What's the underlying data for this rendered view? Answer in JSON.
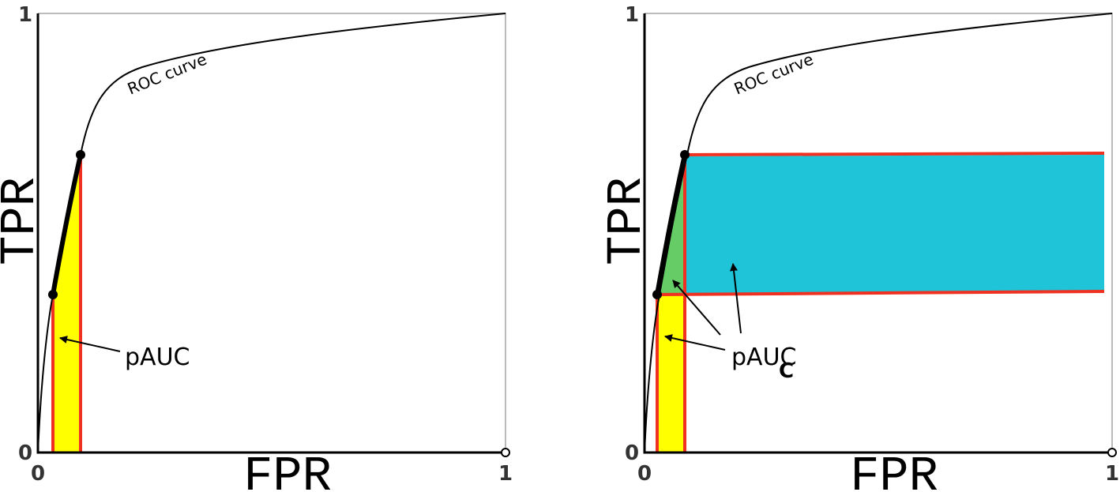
{
  "panels": [
    {
      "y_axis_label": "TPR",
      "x_axis_label": "FPR",
      "curve_label": "ROC curve",
      "region_label": "pAUC",
      "x_ticks": [
        "0",
        "1"
      ],
      "y_ticks": [
        "0",
        "1"
      ]
    },
    {
      "y_axis_label": "TPR",
      "x_axis_label": "FPR",
      "curve_label": "ROC curve",
      "region_label": "pAUC",
      "region_subscript": "C",
      "x_ticks": [
        "0",
        "1"
      ],
      "y_ticks": [
        "0",
        "1"
      ]
    }
  ]
}
